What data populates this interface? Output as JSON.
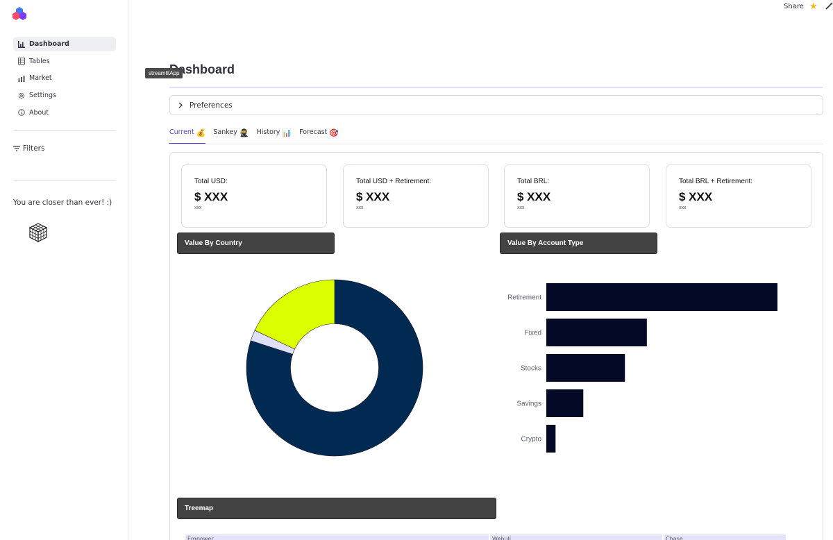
{
  "app": {
    "tooltip": "streamlitApp",
    "share_label": "Share",
    "title": "Dashboard"
  },
  "sidebar": {
    "items": [
      {
        "label": "Dashboard",
        "icon": "bar-chart-icon",
        "active": true
      },
      {
        "label": "Tables",
        "icon": "table-icon",
        "active": false
      },
      {
        "label": "Market",
        "icon": "chart-icon",
        "active": false
      },
      {
        "label": "Settings",
        "icon": "gear-icon",
        "active": false
      },
      {
        "label": "About",
        "icon": "info-icon",
        "active": false
      }
    ],
    "filters_label": "Filters",
    "motto": "You are closer than ever! :)"
  },
  "expander": {
    "label": "Preferences"
  },
  "tabs": [
    {
      "label": "Current",
      "emoji": "💰",
      "active": true
    },
    {
      "label": "Sankey",
      "emoji": "🥷",
      "active": false
    },
    {
      "label": "History",
      "emoji": "📊",
      "active": false
    },
    {
      "label": "Forecast",
      "emoji": "🎯",
      "active": false
    }
  ],
  "metrics": [
    {
      "label": "Total USD:",
      "value": "$ XXX",
      "delta": "xxx"
    },
    {
      "label": "Total USD + Retirement:",
      "value": "$ XXX",
      "delta": "xxx"
    },
    {
      "label": "Total BRL:",
      "value": "$ XXX",
      "delta": "xxx"
    },
    {
      "label": "Total BRL + Retirement:",
      "value": "$ XXX",
      "delta": "xxx"
    }
  ],
  "sections": {
    "country": "Value By Country",
    "account_type": "Value By Account Type",
    "treemap": "Treemap"
  },
  "treemap_labels": [
    "Empower",
    "Webull",
    "Chase"
  ],
  "colors": {
    "accent": "#4b3ec8",
    "donut_navy": "#002a52",
    "donut_lime": "#dcff00",
    "donut_lavender": "#dfe0f7",
    "bar": "#040a26"
  },
  "chart_data": [
    {
      "type": "pie",
      "title": "Value By Country",
      "hole": 0.5,
      "slices": [
        {
          "label": "",
          "value": 80,
          "color": "#002a52"
        },
        {
          "label": "",
          "value": 2,
          "color": "#dfe0f7"
        },
        {
          "label": "",
          "value": 18,
          "color": "#dcff00"
        }
      ]
    },
    {
      "type": "bar",
      "orientation": "horizontal",
      "title": "Value By Account Type",
      "categories": [
        "Retirement",
        "Fixed",
        "Stocks",
        "Savings",
        "Crypto"
      ],
      "values": [
        100,
        43.5,
        34,
        16,
        4
      ]
    }
  ]
}
